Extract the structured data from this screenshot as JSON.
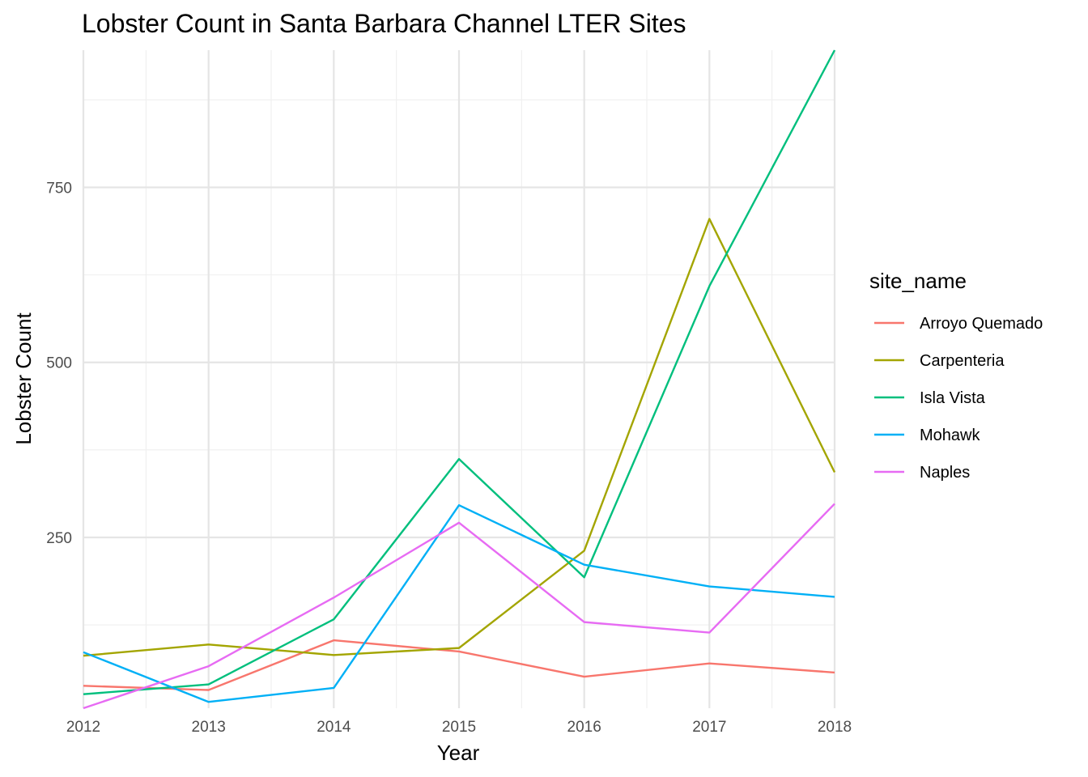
{
  "chart_data": {
    "type": "line",
    "title": "Lobster Count in Santa Barbara Channel LTER Sites",
    "xlabel": "Year",
    "ylabel": "Lobster Count",
    "x": [
      2012,
      2013,
      2014,
      2015,
      2016,
      2017,
      2018
    ],
    "x_ticks": [
      2012,
      2013,
      2014,
      2015,
      2016,
      2017,
      2018
    ],
    "y_ticks": [
      250,
      500,
      750
    ],
    "xlim": [
      2012,
      2018
    ],
    "ylim": [
      6,
      946
    ],
    "grid": true,
    "legend": {
      "title": "site_name",
      "position": "right"
    },
    "series": [
      {
        "name": "Arroyo Quemado",
        "color": "#F8766D",
        "values": [
          38,
          32,
          103,
          87,
          51,
          70,
          57
        ]
      },
      {
        "name": "Carpenteria",
        "color": "#A3A500",
        "values": [
          81,
          97,
          82,
          92,
          231,
          705,
          343
        ]
      },
      {
        "name": "Isla Vista",
        "color": "#00BF7D",
        "values": [
          26,
          40,
          133,
          362,
          193,
          609,
          946
        ]
      },
      {
        "name": "Mohawk",
        "color": "#00B0F6",
        "values": [
          86,
          15,
          35,
          296,
          211,
          180,
          165
        ]
      },
      {
        "name": "Naples",
        "color": "#E76BF3",
        "values": [
          6,
          66,
          164,
          271,
          129,
          114,
          298
        ]
      }
    ]
  }
}
